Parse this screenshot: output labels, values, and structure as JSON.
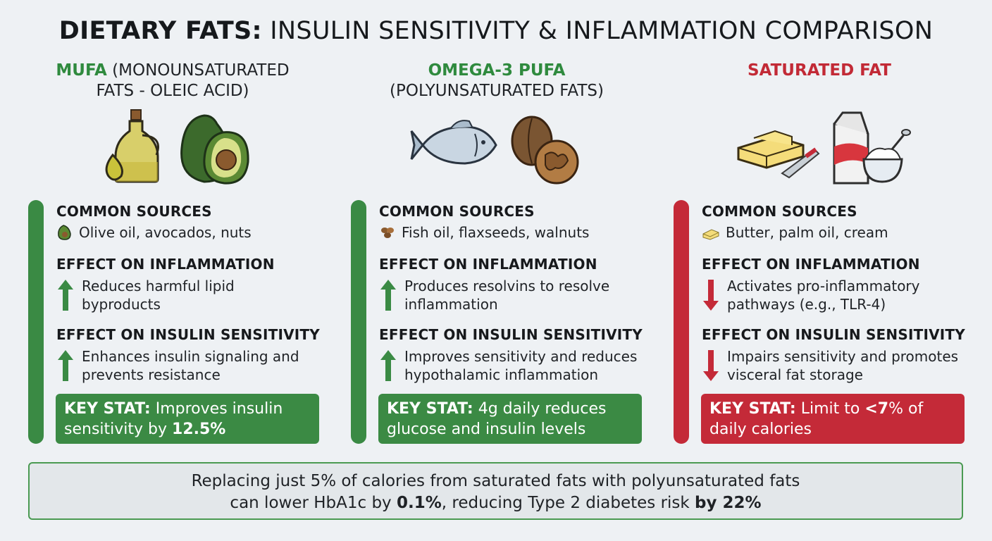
{
  "title": {
    "bold": "DIETARY FATS:",
    "rest": " INSULIN SENSITIVITY & INFLAMMATION COMPARISON"
  },
  "columns": [
    {
      "head_highlight": "MUFA",
      "head_rest": " (MONOUNSATURATED",
      "head_line2": "FATS - OLEIC ACID)",
      "accent": "#2f8a3e",
      "icons": [
        "olive-oil-bottle-icon",
        "avocado-icon"
      ],
      "sources_title": "COMMON SOURCES",
      "sources_icon": "avocado-icon",
      "sources": "Olive oil, avocados, nuts",
      "inflammation_title": "EFFECT ON INFLAMMATION",
      "inflammation_direction": "up",
      "inflammation_line1": "Reduces harmful lipid",
      "inflammation_line2": "byproducts",
      "insulin_title": "EFFECT ON INSULIN SENSITIVITY",
      "insulin_direction": "up",
      "insulin_line1": "Enhances insulin signaling and",
      "insulin_line2": "prevents resistance",
      "stat_label": "KEY STAT:",
      "stat_text": " Improves insulin",
      "stat_line2": "sensitivity by ",
      "stat_bold2": "12.5%"
    },
    {
      "head_highlight": "OMEGA-3 PUFA",
      "head_rest": "",
      "head_line2": "(POLYUNSATURATED FATS)",
      "accent": "#2f8a3e",
      "icons": [
        "fish-icon",
        "walnut-icon"
      ],
      "sources_title": "COMMON SOURCES",
      "sources_icon": "seeds-icon",
      "sources": "Fish oil, flaxseeds, walnuts",
      "inflammation_title": "EFFECT ON INFLAMMATION",
      "inflammation_direction": "up",
      "inflammation_line1": "Produces resolvins to resolve",
      "inflammation_line2": "inflammation",
      "insulin_title": "EFFECT ON INSULIN SENSITIVITY",
      "insulin_direction": "up",
      "insulin_line1": "Improves sensitivity and reduces",
      "insulin_line2": "hypothalamic inflammation",
      "stat_label": "KEY STAT:",
      "stat_text": " 4g daily reduces",
      "stat_line2": "glucose and insulin levels",
      "stat_bold2": ""
    },
    {
      "head_highlight": "SATURATED FAT",
      "head_rest": "",
      "head_line2": "",
      "accent": "#c22a36",
      "icons": [
        "butter-icon",
        "milk-carton-icon",
        "cream-bowl-icon"
      ],
      "sources_title": "COMMON SOURCES",
      "sources_icon": "butter-icon",
      "sources": "Butter, palm oil, cream",
      "inflammation_title": "EFFECT ON INFLAMMATION",
      "inflammation_direction": "down",
      "inflammation_line1": "Activates pro-inflammatory",
      "inflammation_line2": "pathways (e.g., TLR-4)",
      "insulin_title": "EFFECT ON INSULIN SENSITIVITY",
      "insulin_direction": "down",
      "insulin_line1": "Impairs sensitivity and promotes",
      "insulin_line2": "visceral fat storage",
      "stat_label": "KEY STAT:",
      "stat_text": " Limit to ",
      "stat_bold_inline": "<7",
      "stat_text_after": "% of",
      "stat_line2": "daily calories",
      "stat_bold2": ""
    }
  ],
  "footer": {
    "line1": "Replacing just 5% of calories from saturated fats with polyunsaturated fats",
    "line2_a": "can lower HbA1c by ",
    "line2_b": "0.1%",
    "line2_c": ", reducing Type 2 diabetes risk ",
    "line2_d": "by 22%"
  },
  "colors": {
    "green": "#3a8a44",
    "red": "#c42a38",
    "background": "#eef1f4"
  }
}
